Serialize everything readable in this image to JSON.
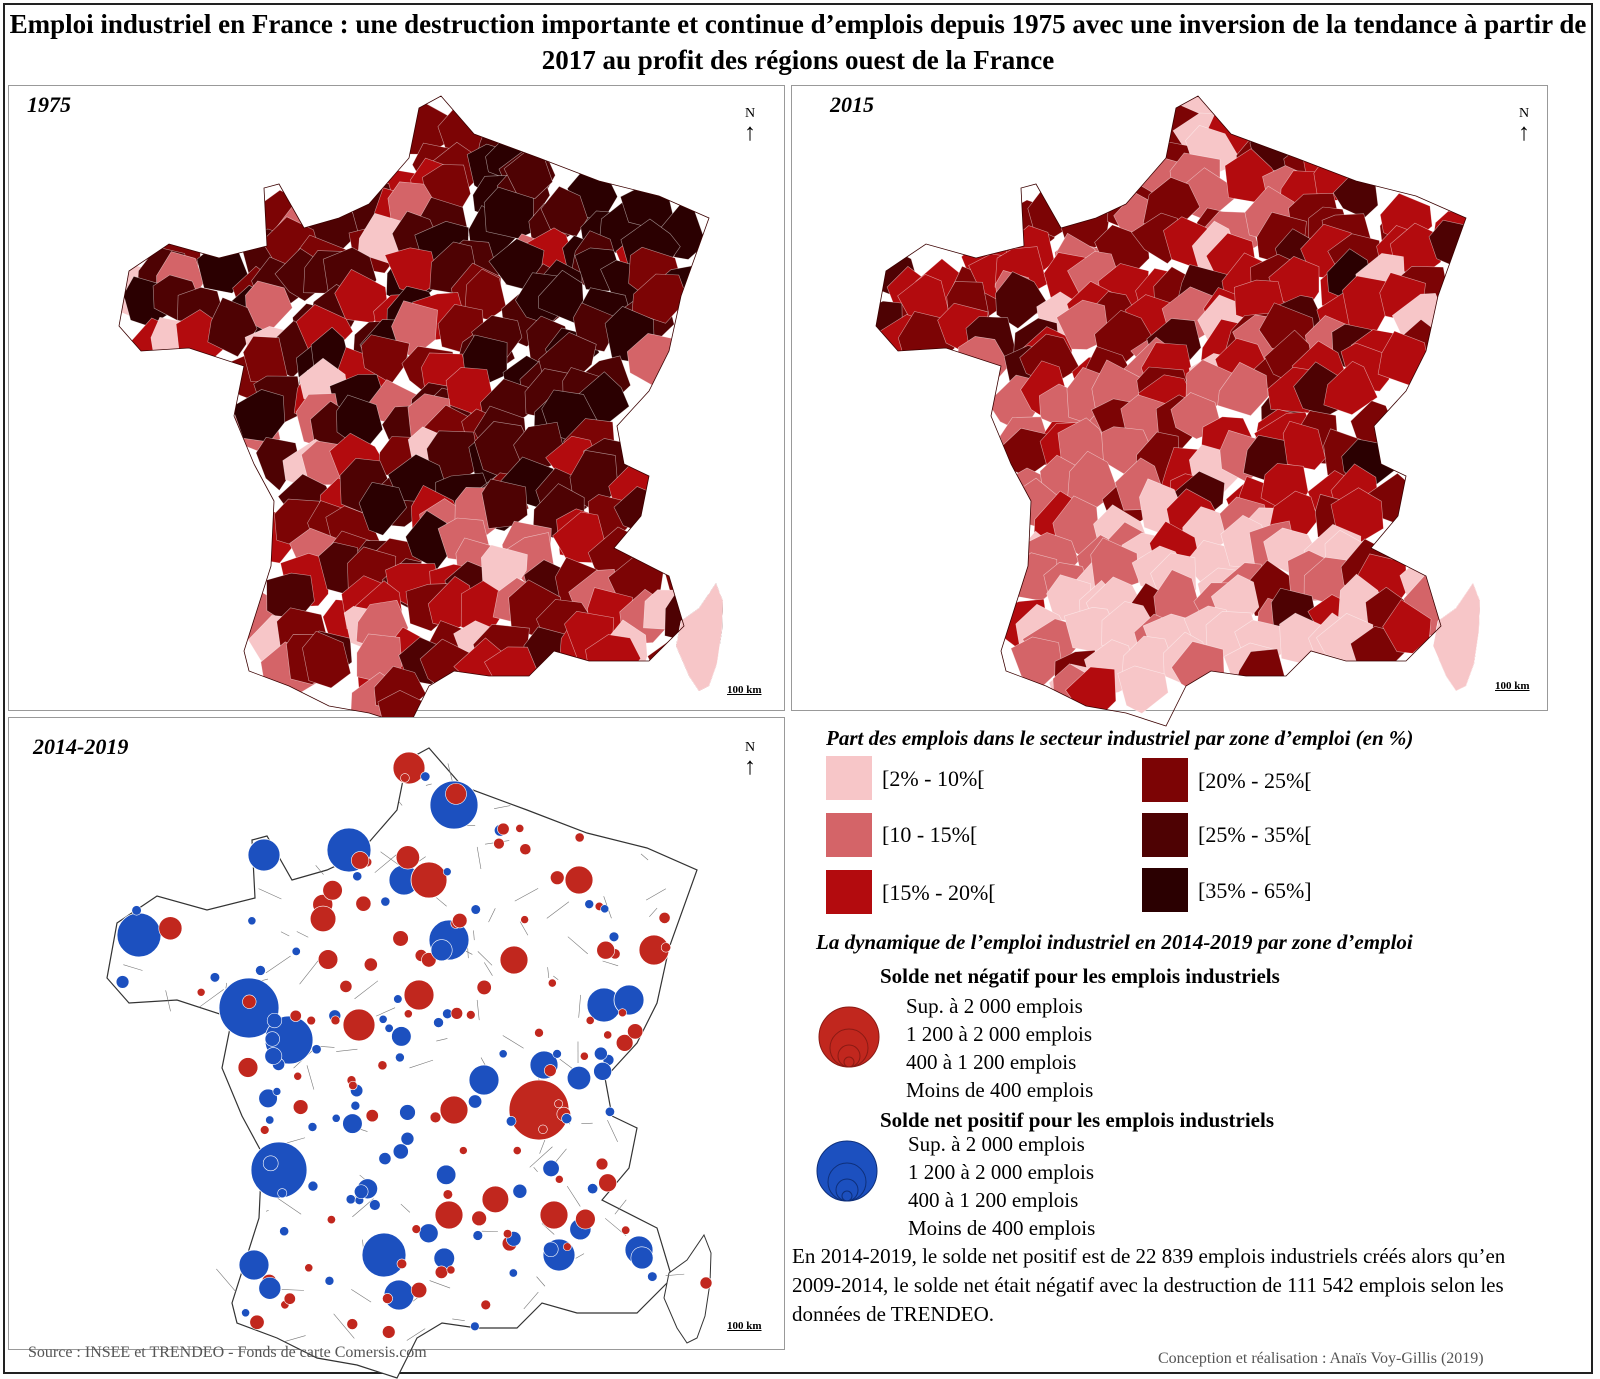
{
  "title": "Emploi industriel en France : une destruction importante et continue d’emplois depuis 1975 avec une inversion de la tendance à partir de 2017 au profit des régions ouest de la France",
  "north_label": "N",
  "scale_label": "100 km",
  "panels": [
    {
      "label": "1975",
      "palette_bias": "dark"
    },
    {
      "label": "2015",
      "palette_bias": "medium"
    },
    {
      "label": "2014-2019",
      "palette_bias": "bubbles"
    }
  ],
  "legend_share": {
    "title": "Part des emplois dans le secteur industriel par zone d’emploi (en %)",
    "classes": [
      {
        "label": "[2% - 10%[",
        "color": "#f7c6c8"
      },
      {
        "label": "[10 - 15%[",
        "color": "#d46468"
      },
      {
        "label": "[15% - 20%[",
        "color": "#b30b0e"
      },
      {
        "label": "[20% - 25%[",
        "color": "#7c0405"
      },
      {
        "label": "[25% - 35%[",
        "color": "#4e0203"
      },
      {
        "label": "[35% - 65%]",
        "color": "#2b0001"
      }
    ]
  },
  "legend_dynamics": {
    "title": "La dynamique de l’emploi industriel en 2014-2019 par zone d’emploi",
    "negative": {
      "title": "Solde net négatif pour les emplois industriels",
      "color": "#c1271e",
      "sizes": [
        "Sup. à 2 000 emplois",
        "1 200 à 2 000 emplois",
        "400 à 1 200 emplois",
        "Moins de 400 emplois"
      ]
    },
    "positive": {
      "title": "Solde net positif pour les emplois industriels",
      "color": "#1c50bf",
      "sizes": [
        "Sup. à 2 000 emplois",
        "1 200 à 2 000 emplois",
        "400 à 1 200 emplois",
        "Moins de 400 emplois"
      ]
    }
  },
  "summary": "En 2014-2019, le solde net positif est de 22 839 emplois industriels créés alors qu’en 2009-2014, le solde net était négatif avec la destruction de 111 542 emplois selon les données de TRENDEO.",
  "source": "Source : INSEE et TRENDEO - Fonds de carte Comersis.com",
  "credit": "Conception et réalisation : Anaïs Voy-Gillis (2019)"
}
